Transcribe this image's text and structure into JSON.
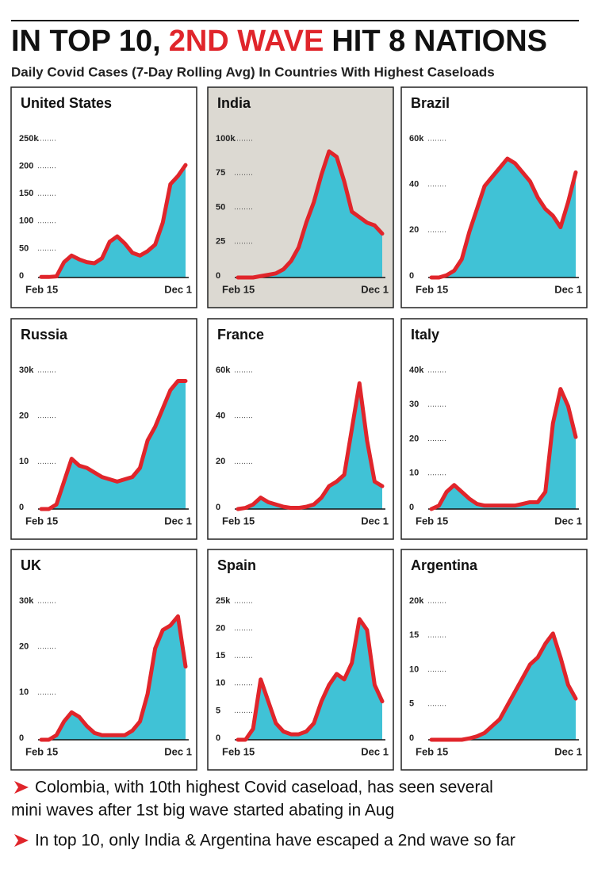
{
  "header": {
    "title": [
      {
        "text": "IN TOP 10,",
        "color": "#111111"
      },
      {
        "text": "2ND WAVE",
        "color": "#e0252b"
      },
      {
        "text": "HIT 8 NATIONS",
        "color": "#111111"
      }
    ],
    "subtitle": "Daily Covid Cases (7-Day Rolling Avg) In Countries With Highest Caseloads"
  },
  "chart_data": [
    {
      "type": "area",
      "title": "United States",
      "color": "#40c2d6",
      "line_color": "#e0252b",
      "background": "#ffffff",
      "categories": [
        "Feb 15",
        null,
        null,
        null,
        null,
        null,
        null,
        null,
        null,
        null,
        null,
        null,
        null,
        null,
        null,
        null,
        null,
        null,
        null,
        "Dec 1"
      ],
      "values": [
        1,
        1,
        2,
        28,
        40,
        33,
        28,
        26,
        35,
        65,
        75,
        62,
        45,
        40,
        48,
        60,
        100,
        170,
        185,
        205
      ],
      "ylim": [
        0,
        250
      ],
      "yticks": [
        0,
        50,
        100,
        150,
        200,
        {
          "value": 250,
          "label": "250k"
        }
      ]
    },
    {
      "type": "area",
      "title": "India",
      "color": "#40c2d6",
      "line_color": "#e0252b",
      "background": "#dcd9d2",
      "categories": [
        "Feb 15",
        null,
        null,
        null,
        null,
        null,
        null,
        null,
        null,
        null,
        null,
        null,
        null,
        null,
        null,
        null,
        null,
        null,
        null,
        "Dec 1"
      ],
      "values": [
        0,
        0,
        0,
        1,
        2,
        3,
        6,
        12,
        22,
        40,
        55,
        75,
        92,
        88,
        70,
        48,
        44,
        40,
        38,
        32
      ],
      "ylim": [
        0,
        100
      ],
      "yticks": [
        0,
        25,
        50,
        75,
        {
          "value": 100,
          "label": "100k"
        }
      ]
    },
    {
      "type": "area",
      "title": "Brazil",
      "color": "#40c2d6",
      "line_color": "#e0252b",
      "background": "#ffffff",
      "categories": [
        "Feb 15",
        null,
        null,
        null,
        null,
        null,
        null,
        null,
        null,
        null,
        null,
        null,
        null,
        null,
        null,
        null,
        null,
        null,
        null,
        "Dec 1"
      ],
      "values": [
        0,
        0,
        1,
        3,
        8,
        20,
        30,
        40,
        44,
        48,
        52,
        50,
        46,
        42,
        35,
        30,
        27,
        22,
        33,
        46
      ],
      "ylim": [
        0,
        60
      ],
      "yticks": [
        0,
        20,
        40,
        {
          "value": 60,
          "label": "60k"
        }
      ]
    },
    {
      "type": "area",
      "title": "Russia",
      "color": "#40c2d6",
      "line_color": "#e0252b",
      "background": "#ffffff",
      "categories": [
        "Feb 15",
        null,
        null,
        null,
        null,
        null,
        null,
        null,
        null,
        null,
        null,
        null,
        null,
        null,
        null,
        null,
        null,
        null,
        null,
        "Dec 1"
      ],
      "values": [
        0,
        0,
        1,
        6,
        11,
        9.5,
        9,
        8,
        7,
        6.5,
        6,
        6.5,
        7,
        9,
        15,
        18,
        22,
        26,
        28,
        28
      ],
      "ylim": [
        0,
        30
      ],
      "yticks": [
        0,
        10,
        20,
        {
          "value": 30,
          "label": "30k"
        }
      ]
    },
    {
      "type": "area",
      "title": "France",
      "color": "#40c2d6",
      "line_color": "#e0252b",
      "background": "#ffffff",
      "categories": [
        "Feb 15",
        null,
        null,
        null,
        null,
        null,
        null,
        null,
        null,
        null,
        null,
        null,
        null,
        null,
        null,
        null,
        null,
        null,
        null,
        "Dec 1"
      ],
      "values": [
        0,
        0.5,
        2,
        5,
        3,
        2,
        1,
        0.5,
        0.5,
        1,
        2,
        5,
        10,
        12,
        15,
        35,
        55,
        30,
        12,
        10
      ],
      "ylim": [
        0,
        60
      ],
      "yticks": [
        0,
        20,
        40,
        {
          "value": 60,
          "label": "60k"
        }
      ]
    },
    {
      "type": "area",
      "title": "Italy",
      "color": "#40c2d6",
      "line_color": "#e0252b",
      "background": "#ffffff",
      "categories": [
        "Feb 15",
        null,
        null,
        null,
        null,
        null,
        null,
        null,
        null,
        null,
        null,
        null,
        null,
        null,
        null,
        null,
        null,
        null,
        null,
        "Dec 1"
      ],
      "values": [
        0,
        1,
        5,
        7,
        5,
        3,
        1.5,
        1,
        1,
        1,
        1,
        1,
        1.5,
        2,
        2,
        5,
        25,
        35,
        30,
        21
      ],
      "ylim": [
        0,
        40
      ],
      "yticks": [
        0,
        10,
        20,
        30,
        {
          "value": 40,
          "label": "40k"
        }
      ]
    },
    {
      "type": "area",
      "title": "UK",
      "color": "#40c2d6",
      "line_color": "#e0252b",
      "background": "#ffffff",
      "categories": [
        "Feb 15",
        null,
        null,
        null,
        null,
        null,
        null,
        null,
        null,
        null,
        null,
        null,
        null,
        null,
        null,
        null,
        null,
        null,
        null,
        "Dec 1"
      ],
      "values": [
        0,
        0,
        1,
        4,
        6,
        5,
        3,
        1.5,
        1,
        1,
        1,
        1,
        2,
        4,
        10,
        20,
        24,
        25,
        27,
        16
      ],
      "ylim": [
        0,
        30
      ],
      "yticks": [
        0,
        10,
        20,
        {
          "value": 30,
          "label": "30k"
        }
      ]
    },
    {
      "type": "area",
      "title": "Spain",
      "color": "#40c2d6",
      "line_color": "#e0252b",
      "background": "#ffffff",
      "categories": [
        "Feb 15",
        null,
        null,
        null,
        null,
        null,
        null,
        null,
        null,
        null,
        null,
        null,
        null,
        null,
        null,
        null,
        null,
        null,
        null,
        "Dec 1"
      ],
      "values": [
        0,
        0,
        2,
        11,
        7,
        3,
        1.5,
        1,
        1,
        1.5,
        3,
        7,
        10,
        12,
        11,
        14,
        22,
        20,
        10,
        7
      ],
      "ylim": [
        0,
        25
      ],
      "yticks": [
        0,
        5,
        10,
        15,
        20,
        {
          "value": 25,
          "label": "25k"
        }
      ]
    },
    {
      "type": "area",
      "title": "Argentina",
      "color": "#40c2d6",
      "line_color": "#e0252b",
      "background": "#ffffff",
      "categories": [
        "Feb 15",
        null,
        null,
        null,
        null,
        null,
        null,
        null,
        null,
        null,
        null,
        null,
        null,
        null,
        null,
        null,
        null,
        null,
        null,
        "Dec 1"
      ],
      "values": [
        0,
        0,
        0,
        0,
        0,
        0.2,
        0.5,
        1,
        2,
        3,
        5,
        7,
        9,
        11,
        12,
        14,
        15.5,
        12,
        8,
        6
      ],
      "ylim": [
        0,
        20
      ],
      "yticks": [
        0,
        5,
        10,
        15,
        {
          "value": 20,
          "label": "20k"
        }
      ]
    }
  ],
  "notes": [
    "Colombia, with 10th highest Covid caseload, has seen several",
    "mini waves after 1st big wave started abating in Aug",
    "In top 10, only India & Argentina have escaped a 2nd wave so far"
  ]
}
